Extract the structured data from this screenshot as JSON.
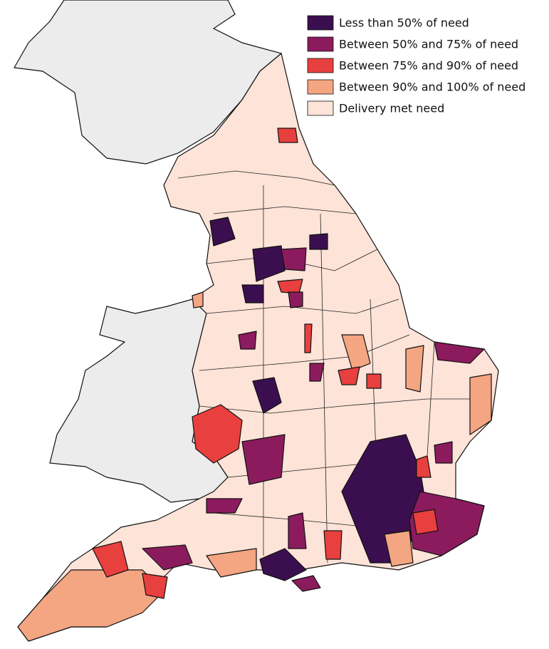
{
  "legend": {
    "items": [
      {
        "label": "Less than 50% of need",
        "color": "#3b0f4f"
      },
      {
        "label": "Between 50% and 75% of need",
        "color": "#8c1b5e"
      },
      {
        "label": "Between 75% and 90% of need",
        "color": "#e8403e"
      },
      {
        "label": "Between 90% and 100% of need",
        "color": "#f4a582"
      },
      {
        "label": "Delivery met need",
        "color": "#fde3d8"
      }
    ]
  }
}
